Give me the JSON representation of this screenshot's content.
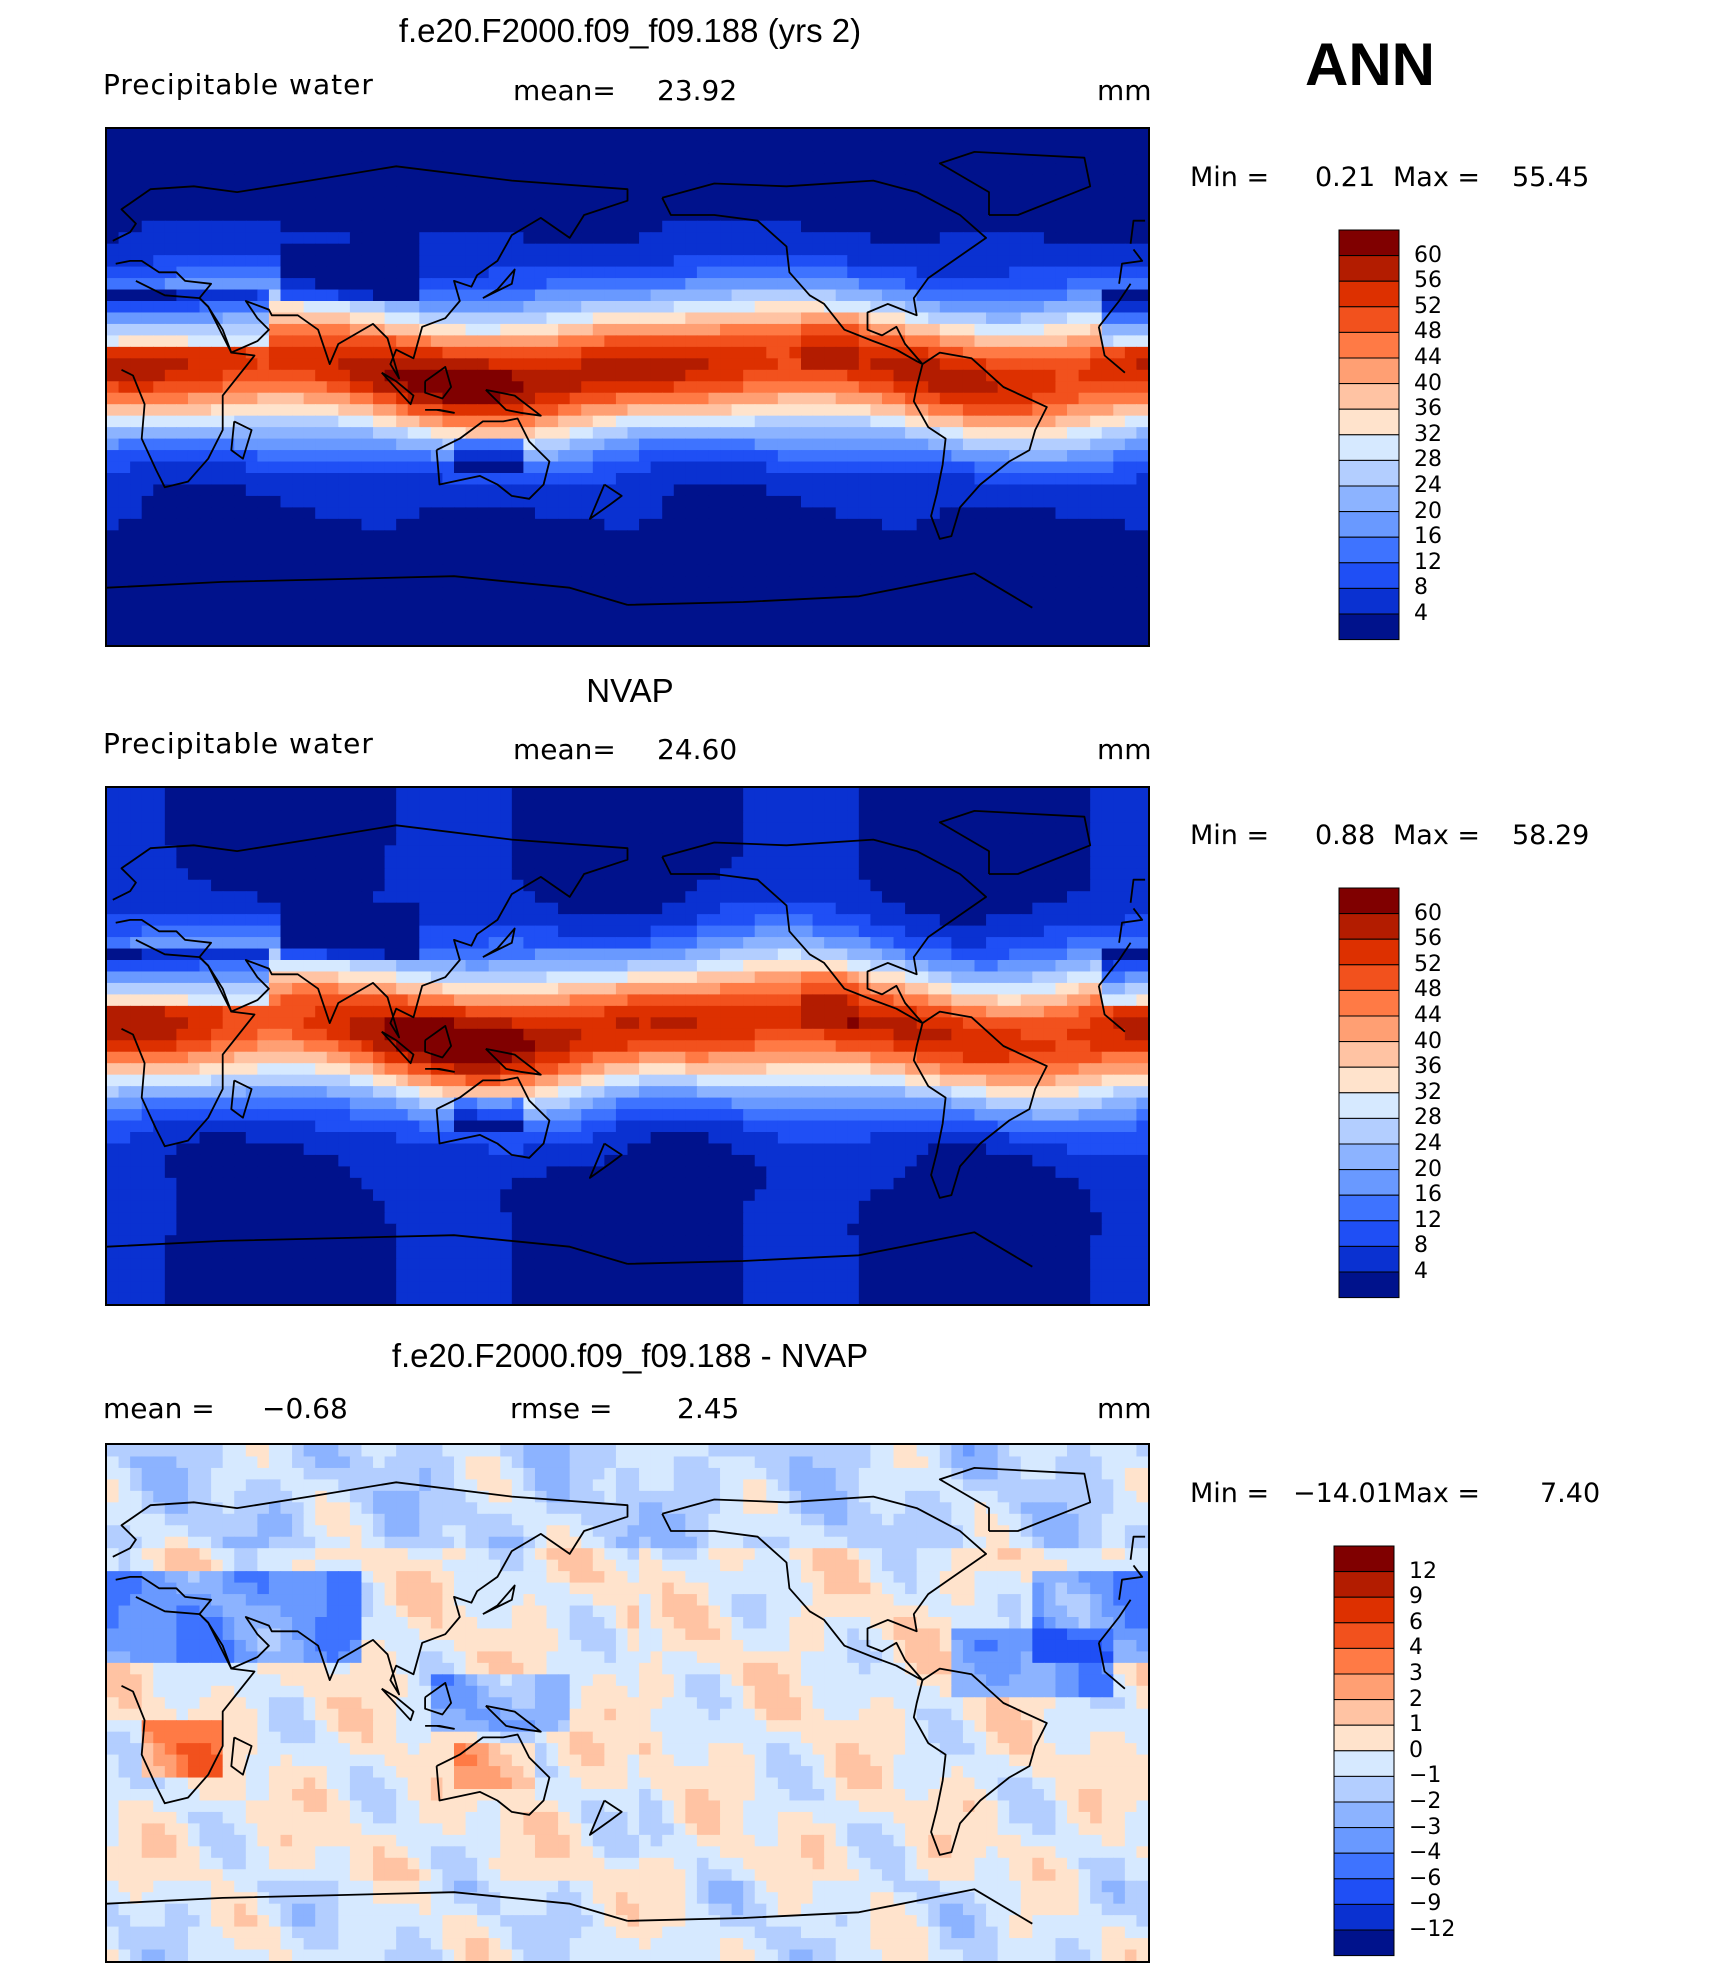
{
  "season": "ANN",
  "panels": [
    {
      "title": "f.e20.F2000.f09_f09.188 (yrs 2)",
      "left_label": "Precipitable  water",
      "center_label": "mean=",
      "center_value": "23.92",
      "right_label": "mm",
      "min_label": "Min  =",
      "min_value": "0.21",
      "max_label": "Max  =",
      "max_value": "55.45",
      "colorbar_labels": [
        "60",
        "56",
        "52",
        "48",
        "44",
        "40",
        "36",
        "32",
        "28",
        "24",
        "20",
        "16",
        "12",
        "8",
        "4"
      ],
      "colorbar_colors": [
        "#800000",
        "#b31c00",
        "#dd3000",
        "#f2511d",
        "#ff7a45",
        "#ff9f73",
        "#ffc3a3",
        "#ffe3cc",
        "#d6e9ff",
        "#b3ceff",
        "#8cb3ff",
        "#6999ff",
        "#3e73ff",
        "#1f4ff5",
        "#0a31d1",
        "#00128c"
      ],
      "colormap": "absolute"
    },
    {
      "title": "NVAP",
      "left_label": "Precipitable  water",
      "center_label": "mean=",
      "center_value": "24.60",
      "right_label": "mm",
      "min_label": "Min  =",
      "min_value": "0.88",
      "max_label": "Max  =",
      "max_value": "58.29",
      "colorbar_labels": [
        "60",
        "56",
        "52",
        "48",
        "44",
        "40",
        "36",
        "32",
        "28",
        "24",
        "20",
        "16",
        "12",
        "8",
        "4"
      ],
      "colorbar_colors": [
        "#800000",
        "#b31c00",
        "#dd3000",
        "#f2511d",
        "#ff7a45",
        "#ff9f73",
        "#ffc3a3",
        "#ffe3cc",
        "#d6e9ff",
        "#b3ceff",
        "#8cb3ff",
        "#6999ff",
        "#3e73ff",
        "#1f4ff5",
        "#0a31d1",
        "#00128c"
      ],
      "colormap": "absolute"
    },
    {
      "title": "f.e20.F2000.f09_f09.188 - NVAP",
      "left_label": "mean  =",
      "left_value": "−0.68",
      "center_label": "rmse  =",
      "center_value": "2.45",
      "right_label": "mm",
      "min_label": "Min  =",
      "min_value": "−14.01",
      "max_label": "Max  =",
      "max_value": "7.40",
      "colorbar_labels": [
        "12",
        "9",
        "6",
        "4",
        "3",
        "2",
        "1",
        "0",
        "−1",
        "−2",
        "−3",
        "−4",
        "−6",
        "−9",
        "−12"
      ],
      "colorbar_colors": [
        "#800000",
        "#b31c00",
        "#dd3000",
        "#f2511d",
        "#ff7a45",
        "#ff9f73",
        "#ffc3a3",
        "#ffe3cc",
        "#d6e9ff",
        "#b3ceff",
        "#8cb3ff",
        "#6999ff",
        "#3e73ff",
        "#1f4ff5",
        "#0a31d1",
        "#00128c"
      ],
      "colormap": "difference"
    }
  ]
}
